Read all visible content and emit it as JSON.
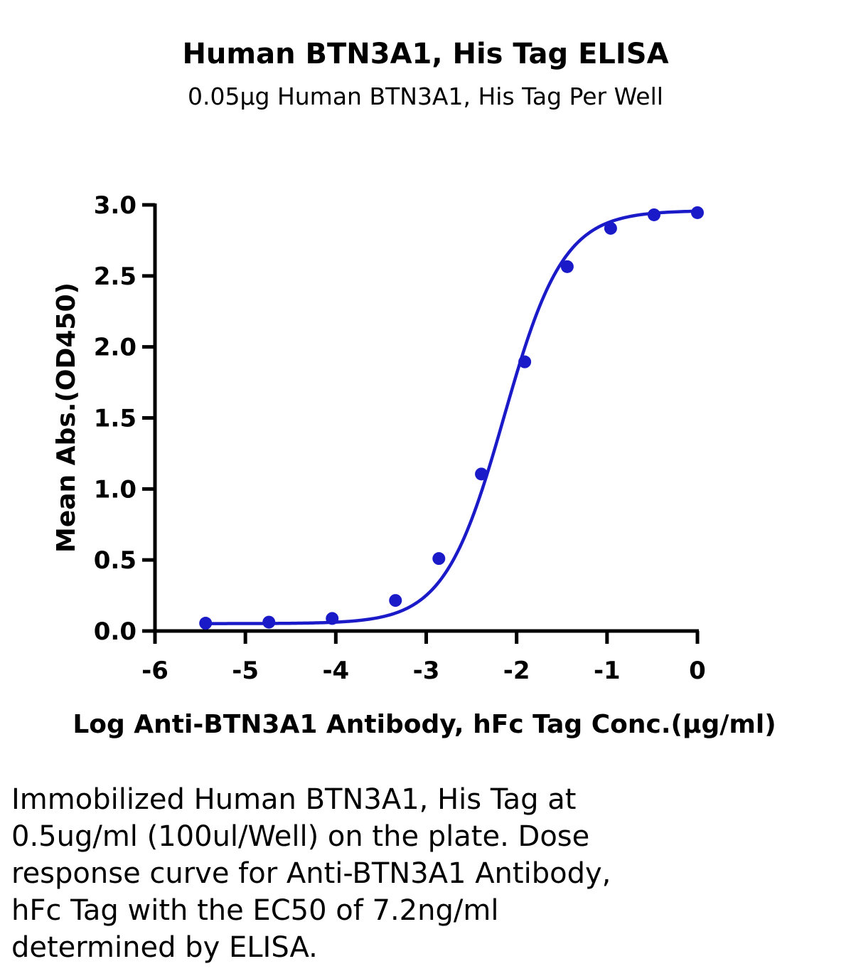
{
  "chart_data": {
    "type": "scatter",
    "title": "Human BTN3A1, His Tag ELISA",
    "subtitle": "0.05µg Human BTN3A1, His Tag Per Well",
    "xlabel": "Log Anti-BTN3A1 Antibody, hFc Tag Conc.(µg/ml)",
    "ylabel": "Mean Abs.(OD450)",
    "xlim": [
      -6,
      0
    ],
    "ylim": [
      0,
      3
    ],
    "x_ticks": [
      "-6",
      "-5",
      "-4",
      "-3",
      "-2",
      "-1",
      "0"
    ],
    "y_ticks": [
      "0.0",
      "0.5",
      "1.0",
      "1.5",
      "2.0",
      "2.5",
      "3.0"
    ],
    "grid": false,
    "legend": "none",
    "color": "#1a1ac8",
    "fit_curve": "four-parameter sigmoidal fit",
    "series": [
      {
        "x": [
          -5.44,
          -4.74,
          -4.04,
          -3.34,
          -2.86,
          -2.39,
          -1.91,
          -1.44,
          -0.96,
          -0.48,
          0.0
        ],
        "values": [
          0.055,
          0.062,
          0.088,
          0.215,
          0.51,
          1.105,
          1.895,
          2.565,
          2.835,
          2.93,
          2.945
        ]
      }
    ]
  },
  "caption": "Immobilized Human BTN3A1, His Tag at\n0.5ug/ml (100ul/Well) on the plate. Dose\nresponse curve for Anti-BTN3A1 Antibody,\nhFc Tag with the EC50 of 7.2ng/ml\ndetermined by ELISA."
}
